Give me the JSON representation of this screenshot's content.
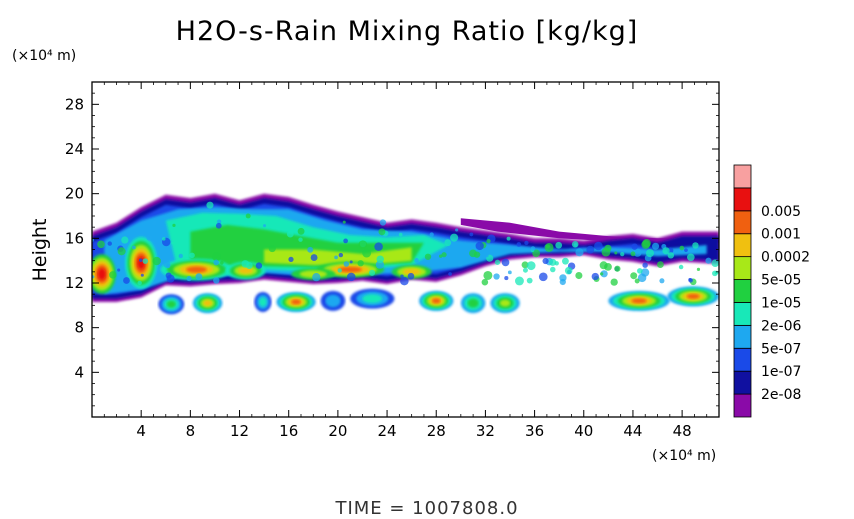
{
  "chart_data": {
    "type": "heatmap",
    "title": "H2O-s-Rain Mixing Ratio [kg/kg]",
    "ylabel": "Height",
    "x_unit": "(×10⁴ m)",
    "y_unit": "(×10⁴ m)",
    "xlim": [
      0,
      51
    ],
    "ylim": [
      0,
      30
    ],
    "x_ticks": [
      4,
      8,
      12,
      16,
      20,
      24,
      28,
      32,
      36,
      40,
      44,
      48
    ],
    "y_ticks": [
      4,
      8,
      12,
      16,
      20,
      24,
      28
    ],
    "colorbar": {
      "labels": [
        "2e-08",
        "1e-07",
        "5e-07",
        "2e-06",
        "1e-05",
        "5e-05",
        "0.0002",
        "0.001",
        "0.005"
      ],
      "colors": [
        "#8a0aa8",
        "#1010a0",
        "#1a4ae8",
        "#1ea8f0",
        "#18e8b8",
        "#20d040",
        "#a8e818",
        "#f0c010",
        "#f06010",
        "#e81010",
        "#f8a0a0"
      ]
    },
    "fields": [
      {
        "name": "upper-cloud-layer",
        "x_range": [
          0,
          51
        ],
        "bottom": 11.5,
        "top": [
          16,
          17,
          19.5,
          19,
          18,
          17,
          16,
          15.5,
          15,
          14.5,
          16
        ]
      },
      {
        "name": "lower-rain-bands",
        "x_range": [
          5,
          51
        ],
        "bottom": 9.5,
        "top": 11
      }
    ],
    "footer": "TIME =  1007808.0"
  }
}
